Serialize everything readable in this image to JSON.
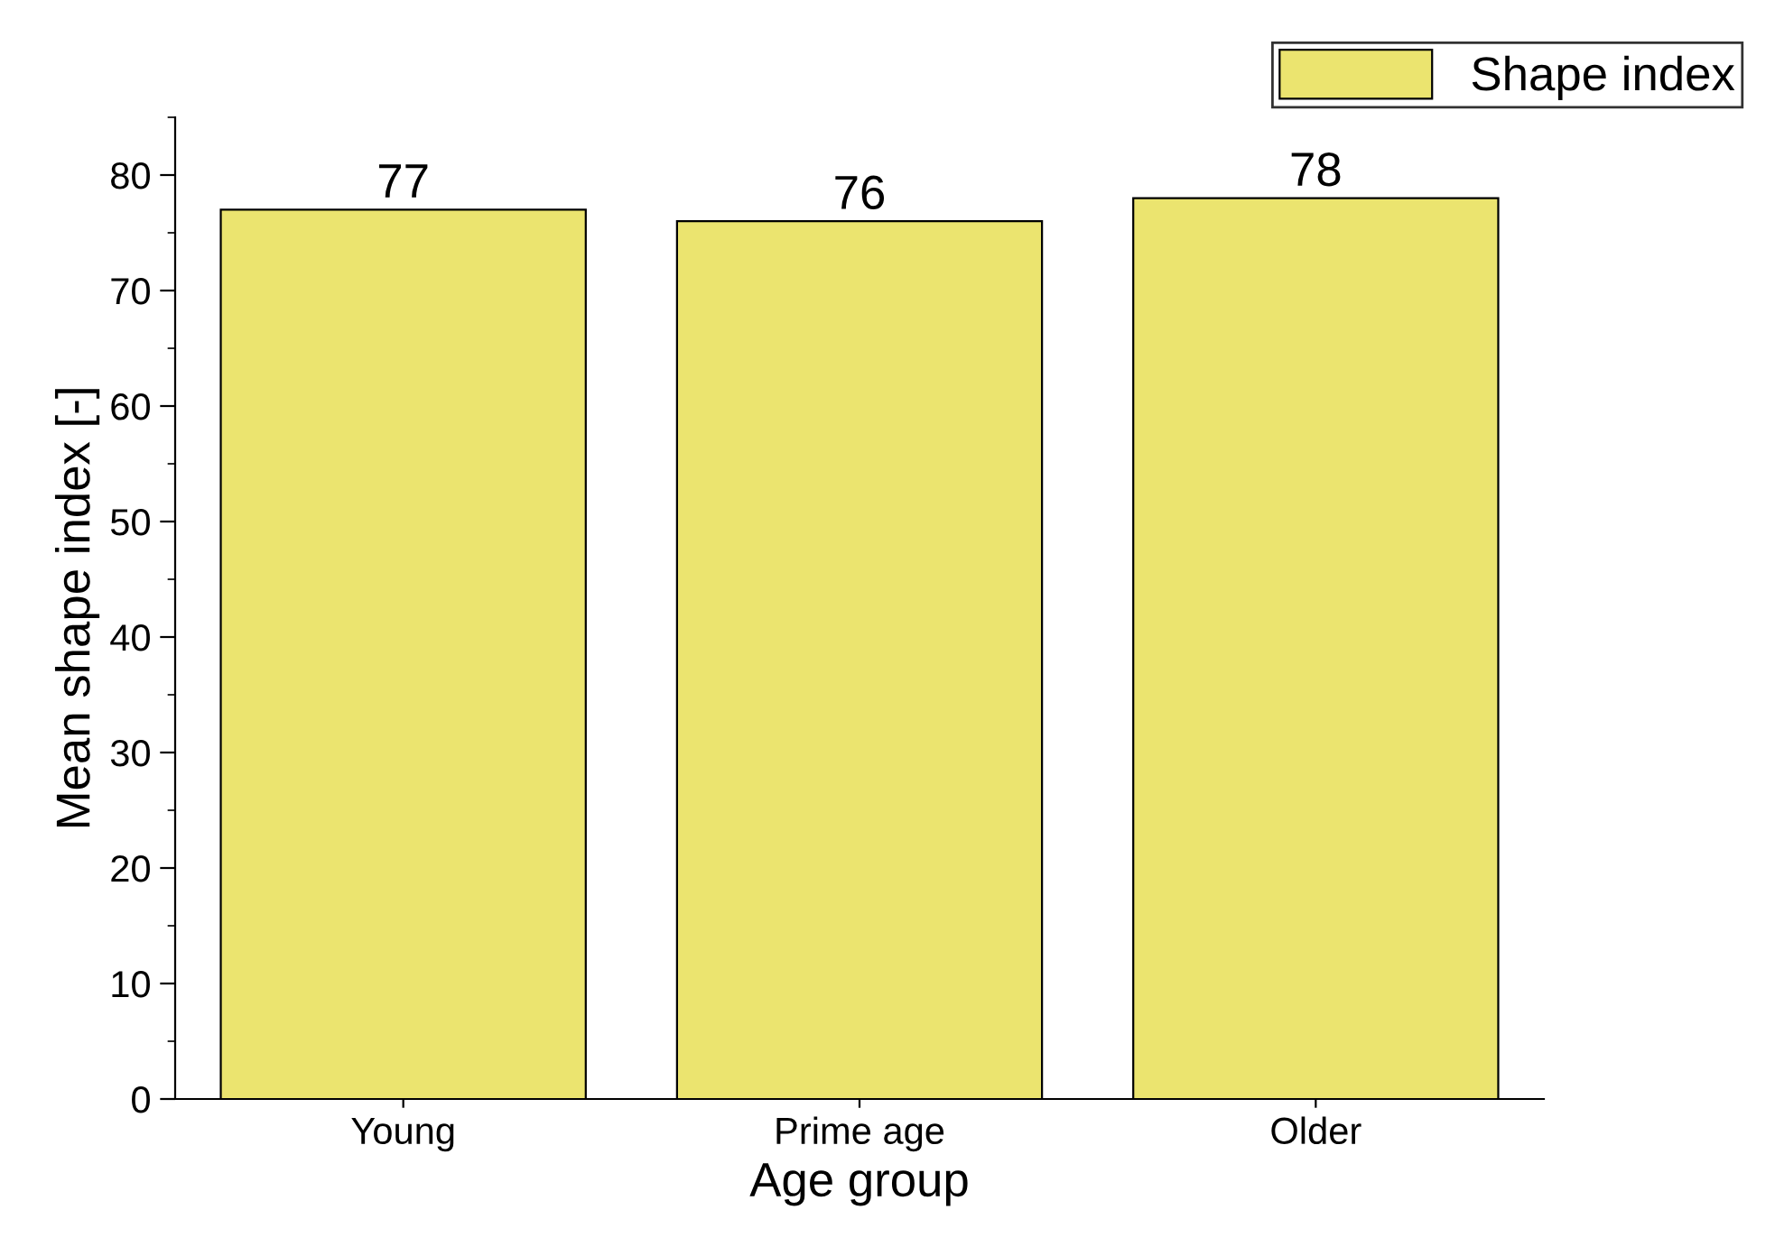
{
  "chart_data": {
    "type": "bar",
    "xlabel": "Age group",
    "ylabel": "Mean shape index [-]",
    "categories": [
      "Young",
      "Prime age",
      "Older"
    ],
    "series": [
      {
        "name": "Shape index",
        "color": "#ebe46f",
        "values": [
          77,
          76,
          78
        ]
      }
    ],
    "ylim": [
      0,
      85
    ],
    "yticks": [
      0,
      10,
      20,
      30,
      40,
      50,
      60,
      70,
      80
    ],
    "data_labels": true,
    "legend": "top right",
    "grid": false
  }
}
